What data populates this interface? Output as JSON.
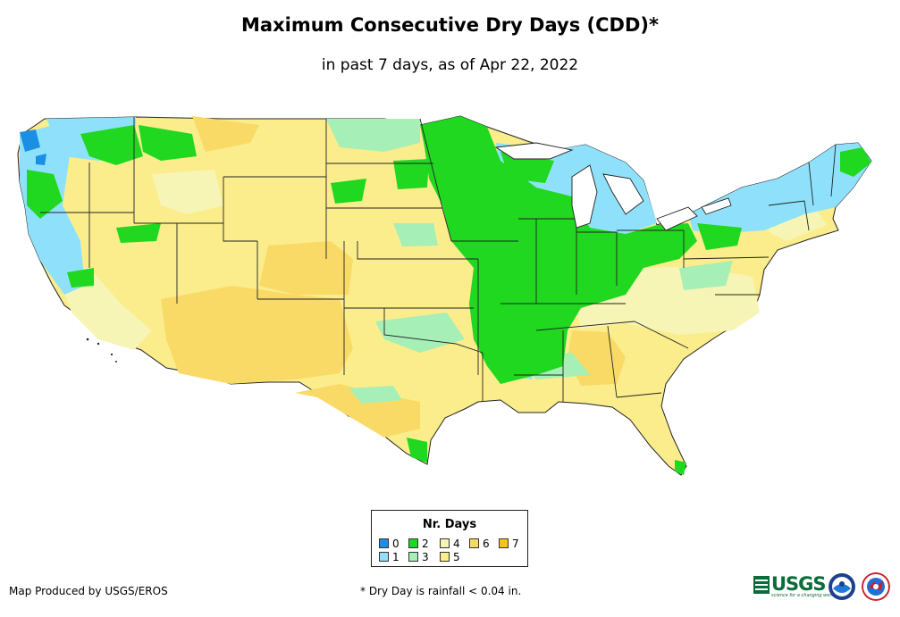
{
  "title": "Maximum Consecutive Dry Days (CDD)*",
  "subtitle": "in past 7 days, as of Apr 22, 2022",
  "legend": {
    "title": "Nr. Days",
    "items": [
      {
        "label": "0",
        "color": "#1a8fe3"
      },
      {
        "label": "1",
        "color": "#8fe1fb"
      },
      {
        "label": "2",
        "color": "#1fd81f"
      },
      {
        "label": "3",
        "color": "#a6efb6"
      },
      {
        "label": "4",
        "color": "#f6f5b6"
      },
      {
        "label": "5",
        "color": "#fbed8c"
      },
      {
        "label": "6",
        "color": "#f9da66"
      },
      {
        "label": "7",
        "color": "#f7c21c"
      }
    ]
  },
  "footer": {
    "credit": "Map Produced by USGS/EROS",
    "footnote": "* Dry Day is rainfall < 0.04 in."
  },
  "logos": {
    "usgs": "USGS",
    "usgs_tagline": "science for a changing world",
    "noaa": "noaa-seal",
    "nws": "nws-seal"
  }
}
